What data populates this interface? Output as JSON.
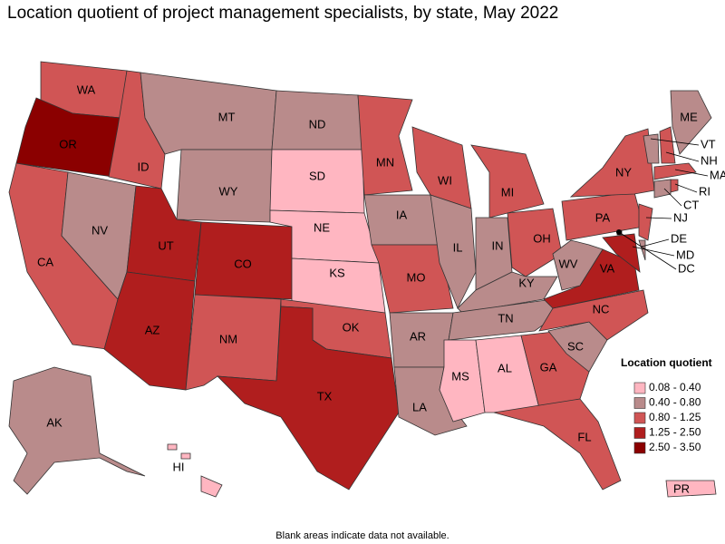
{
  "title": "Location quotient of project management specialists, by state, May 2022",
  "footnote": "Blank areas indicate data not available.",
  "legend": {
    "title": "Location quotient",
    "bins": [
      {
        "label": "0.08 - 0.40",
        "color": "#ffb6c1"
      },
      {
        "label": "0.40 - 0.80",
        "color": "#b98b8b"
      },
      {
        "label": "0.80 - 1.25",
        "color": "#d05555"
      },
      {
        "label": "1.25 - 2.50",
        "color": "#b01e1e"
      },
      {
        "label": "2.50 - 3.50",
        "color": "#8b0000"
      }
    ]
  },
  "states": [
    {
      "label": "WA",
      "color": "#d05555"
    },
    {
      "label": "OR",
      "color": "#8b0000"
    },
    {
      "label": "CA",
      "color": "#d05555"
    },
    {
      "label": "NV",
      "color": "#b98b8b"
    },
    {
      "label": "ID",
      "color": "#d05555"
    },
    {
      "label": "MT",
      "color": "#b98b8b"
    },
    {
      "label": "WY",
      "color": "#b98b8b"
    },
    {
      "label": "UT",
      "color": "#b01e1e"
    },
    {
      "label": "CO",
      "color": "#b01e1e"
    },
    {
      "label": "AZ",
      "color": "#b01e1e"
    },
    {
      "label": "NM",
      "color": "#d05555"
    },
    {
      "label": "ND",
      "color": "#b98b8b"
    },
    {
      "label": "SD",
      "color": "#ffb6c1"
    },
    {
      "label": "NE",
      "color": "#ffb6c1"
    },
    {
      "label": "KS",
      "color": "#ffb6c1"
    },
    {
      "label": "OK",
      "color": "#d05555"
    },
    {
      "label": "TX",
      "color": "#b01e1e"
    },
    {
      "label": "MN",
      "color": "#d05555"
    },
    {
      "label": "IA",
      "color": "#b98b8b"
    },
    {
      "label": "MO",
      "color": "#d05555"
    },
    {
      "label": "AR",
      "color": "#b98b8b"
    },
    {
      "label": "LA",
      "color": "#b98b8b"
    },
    {
      "label": "WI",
      "color": "#d05555"
    },
    {
      "label": "IL",
      "color": "#b98b8b"
    },
    {
      "label": "MI",
      "color": "#d05555"
    },
    {
      "label": "IN",
      "color": "#b98b8b"
    },
    {
      "label": "OH",
      "color": "#d05555"
    },
    {
      "label": "KY",
      "color": "#b98b8b"
    },
    {
      "label": "TN",
      "color": "#b98b8b"
    },
    {
      "label": "MS",
      "color": "#ffb6c1"
    },
    {
      "label": "AL",
      "color": "#ffb6c1"
    },
    {
      "label": "GA",
      "color": "#d05555"
    },
    {
      "label": "FL",
      "color": "#d05555"
    },
    {
      "label": "SC",
      "color": "#b98b8b"
    },
    {
      "label": "NC",
      "color": "#d05555"
    },
    {
      "label": "VA",
      "color": "#b01e1e"
    },
    {
      "label": "WV",
      "color": "#b98b8b"
    },
    {
      "label": "PA",
      "color": "#d05555"
    },
    {
      "label": "NY",
      "color": "#d05555"
    },
    {
      "label": "VT",
      "color": "#b98b8b"
    },
    {
      "label": "NH",
      "color": "#d05555"
    },
    {
      "label": "ME",
      "color": "#b98b8b"
    },
    {
      "label": "MA",
      "color": "#d05555"
    },
    {
      "label": "RI",
      "color": "#d05555"
    },
    {
      "label": "CT",
      "color": "#b98b8b"
    },
    {
      "label": "NJ",
      "color": "#d05555"
    },
    {
      "label": "DE",
      "color": "#b98b8b"
    },
    {
      "label": "MD",
      "color": "#b01e1e"
    },
    {
      "label": "DC",
      "color": "#8b0000"
    },
    {
      "label": "AK",
      "color": "#b98b8b"
    },
    {
      "label": "HI",
      "color": "#ffb6c1"
    },
    {
      "label": "PR",
      "color": "#ffb6c1"
    }
  ]
}
